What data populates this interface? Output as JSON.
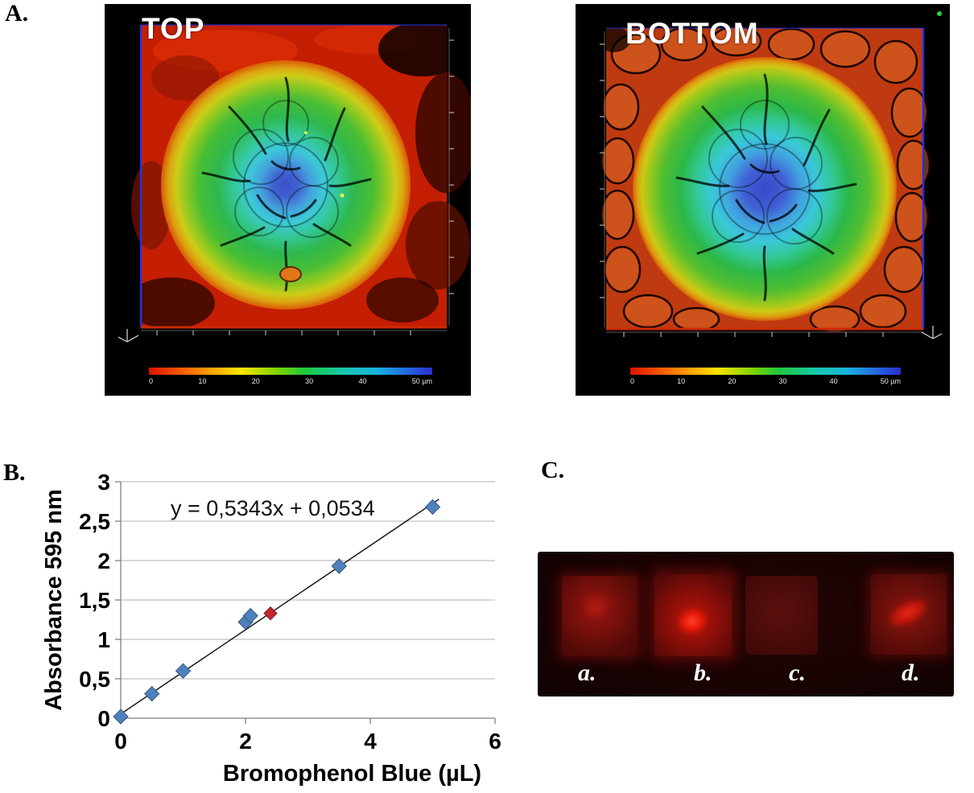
{
  "panel_a": {
    "label": "A.",
    "images": [
      {
        "title": "TOP"
      },
      {
        "title": "BOTTOM"
      }
    ],
    "scalebar_ticks": [
      "0",
      "10",
      "20",
      "30",
      "40",
      "50 µm"
    ]
  },
  "panel_b": {
    "label": "B."
  },
  "panel_c": {
    "label": "C.",
    "spot_labels": [
      "a.",
      "b.",
      "c.",
      "d."
    ]
  },
  "chart_data": {
    "type": "scatter",
    "title": "",
    "xlabel": "Bromophenol Blue (µL)",
    "ylabel": "Absorbance 595 nm",
    "xlim": [
      0,
      6
    ],
    "ylim": [
      0,
      3
    ],
    "x_ticks": [
      "0",
      "2",
      "4",
      "6"
    ],
    "y_ticks": [
      "0",
      "0,5",
      "1",
      "1,5",
      "2",
      "2,5",
      "3"
    ],
    "grid": "horizontal",
    "series": [
      {
        "name": "blue-diamond-series",
        "marker": "diamond",
        "color": "#4f81bd",
        "stroke": "#36597f",
        "points": [
          [
            0,
            0.02
          ],
          [
            0.5,
            0.31
          ],
          [
            1,
            0.6
          ],
          [
            2,
            1.22
          ],
          [
            2.08,
            1.3
          ],
          [
            3.5,
            1.93
          ],
          [
            5,
            2.68
          ]
        ]
      },
      {
        "name": "red-diamond-point",
        "marker": "diamond",
        "color": "#c0282d",
        "stroke": "#7f1a1e",
        "points": [
          [
            2.4,
            1.33
          ]
        ]
      }
    ],
    "trendline": {
      "slope": 0.5343,
      "intercept": 0.0534,
      "x_range": [
        0,
        5.1
      ],
      "equation_label": "y = 0,5343x + 0,0534"
    }
  }
}
